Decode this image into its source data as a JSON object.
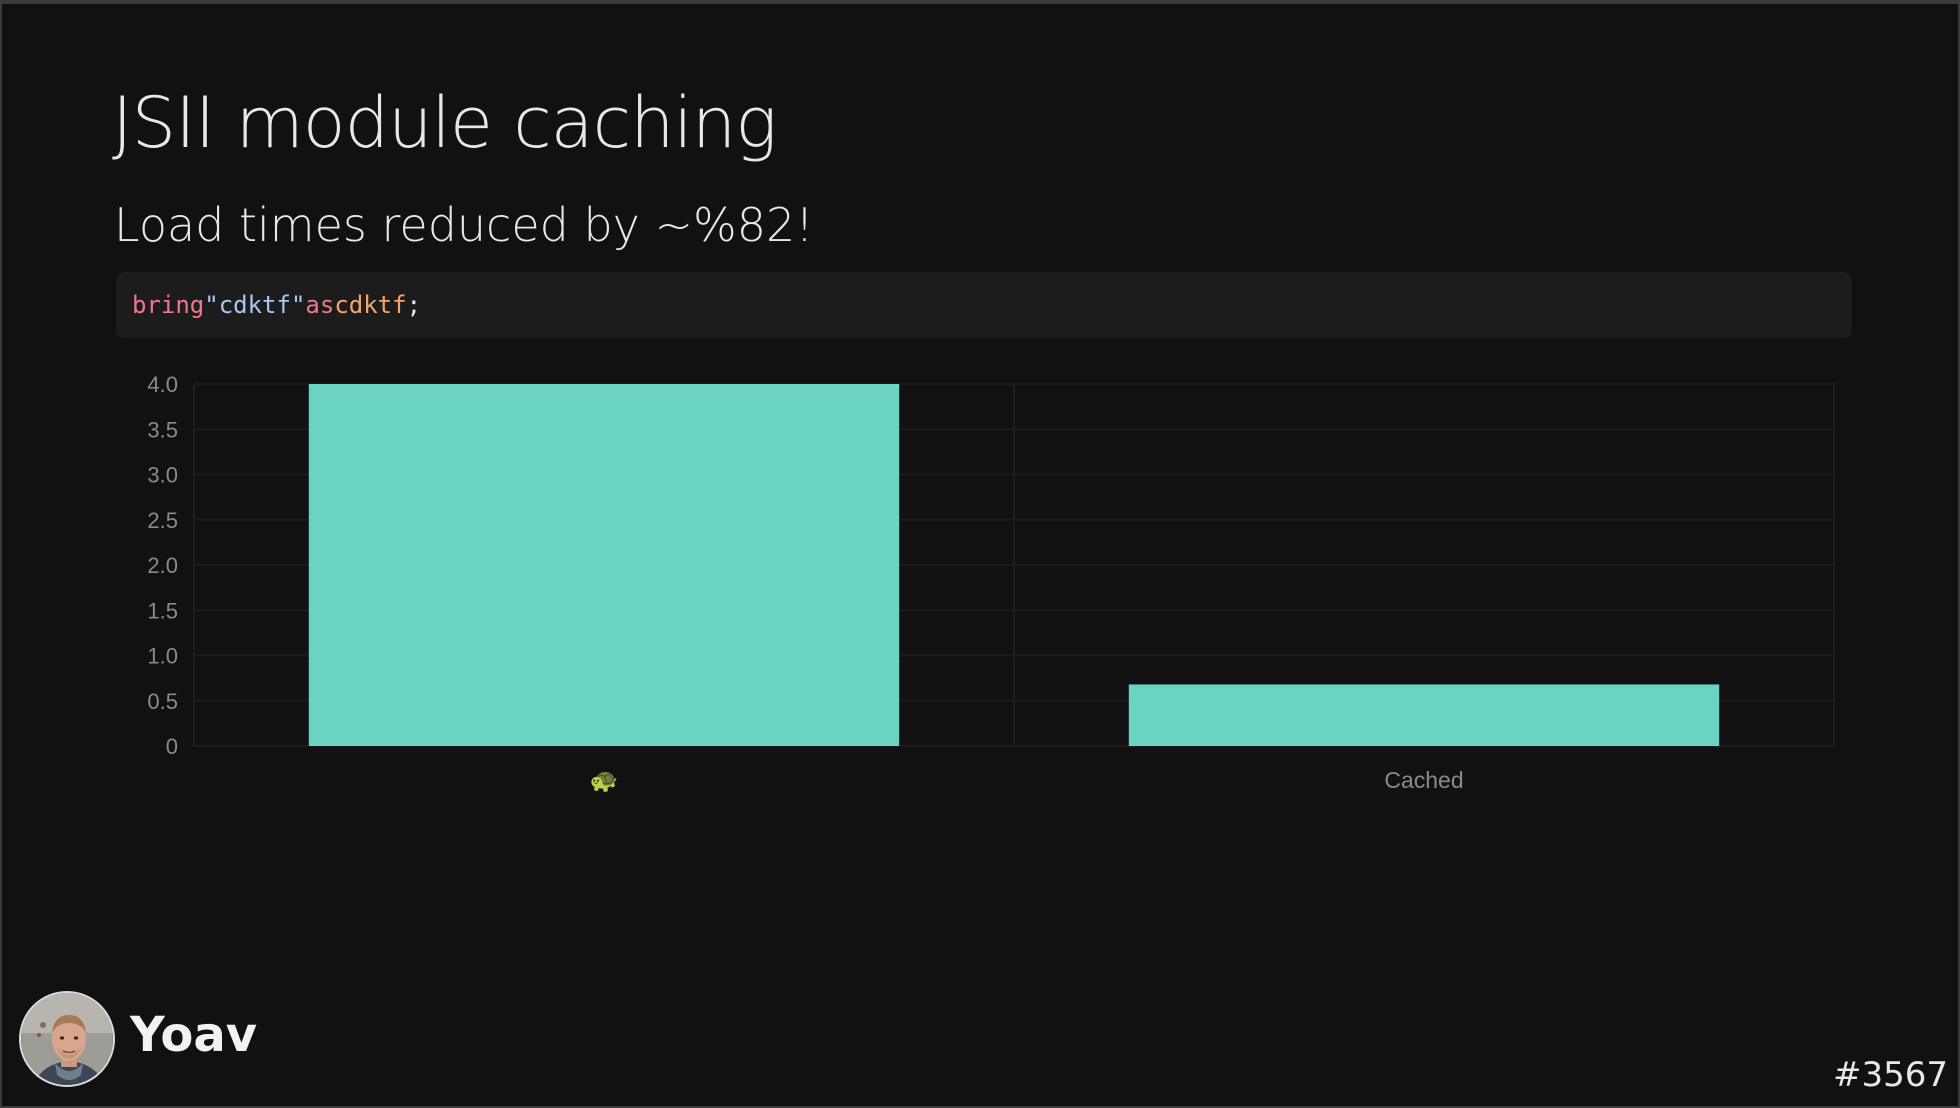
{
  "slide": {
    "title": "JSII module caching",
    "subtitle": "Load times reduced by ~%82!",
    "code": {
      "keyword_bring": "bring",
      "string": "\"cdktf\"",
      "keyword_as": "as",
      "identifier": "cdktf",
      "terminator": ";"
    },
    "presenter_name": "Yoav",
    "slide_number": "#3567"
  },
  "chart_data": {
    "type": "bar",
    "categories": [
      "🐢",
      "Cached"
    ],
    "values": [
      4.0,
      0.68
    ],
    "ylim": [
      0,
      4.0
    ],
    "y_ticks": [
      "0",
      "0.5",
      "1.0",
      "1.5",
      "2.0",
      "2.5",
      "3.0",
      "3.5",
      "4.0"
    ],
    "grid": true,
    "bar_color": "#6ad3c2",
    "grid_color": "#1c1c1c",
    "tick_color": "#8a8a8a"
  },
  "colors": {
    "background": "#111111",
    "code_background": "#1c1c1c",
    "keyword": "#f0788a",
    "string": "#a8c7f0",
    "identifier": "#f4a46c",
    "text": "#e8e8e8"
  },
  "icons": {
    "avatar": "presenter-avatar-photo"
  }
}
